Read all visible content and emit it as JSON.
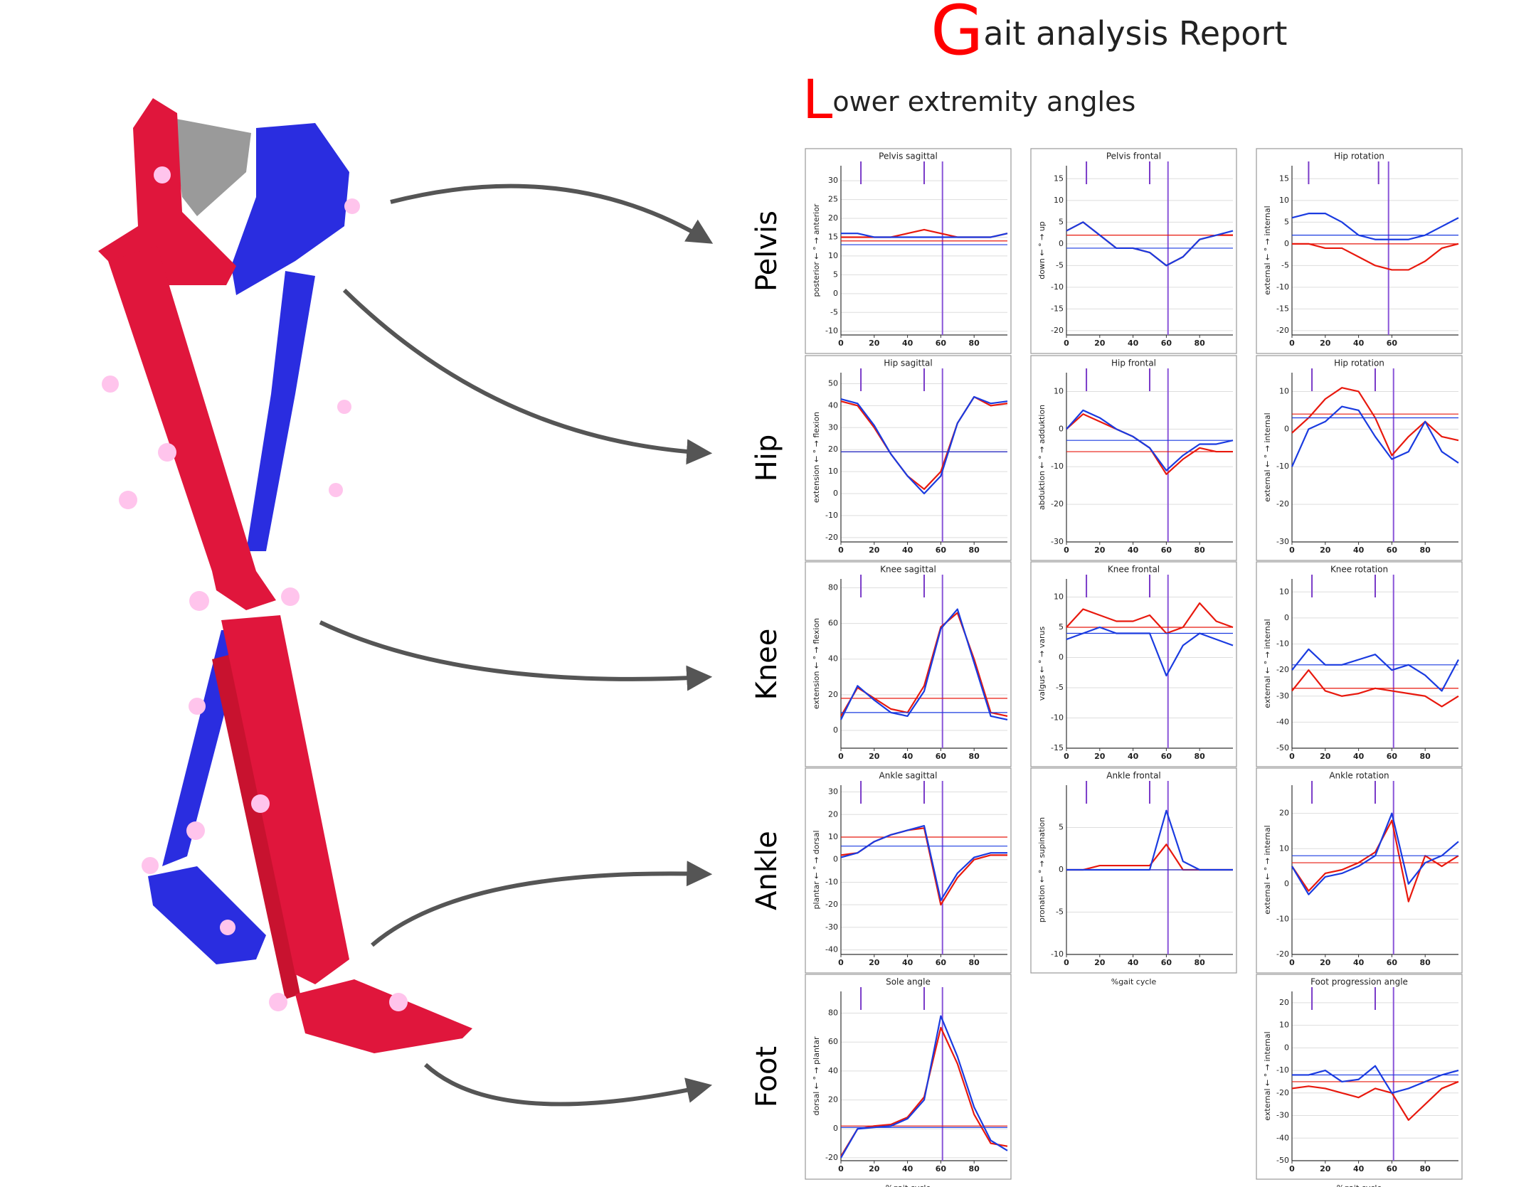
{
  "header": {
    "title_initial": "G",
    "title_rest": "ait analysis Report",
    "subtitle_initial": "L",
    "subtitle_rest": "ower extremity angles"
  },
  "row_labels": [
    "Pelvis",
    "Hip",
    "Knee",
    "Ankle",
    "Foot"
  ],
  "chart_data": [
    {
      "type": "line",
      "title": "Pelvis sagittal",
      "y_label": "posterior ← ° → anterior",
      "x": [
        0,
        10,
        20,
        30,
        40,
        50,
        60,
        70,
        80,
        90,
        100
      ],
      "xlim": [
        0,
        100
      ],
      "xticks": [
        0,
        20,
        40,
        60,
        80
      ],
      "ylim": [
        -11,
        34
      ],
      "yticks": [
        -10,
        -5,
        0,
        5,
        10,
        15,
        20,
        25,
        30
      ],
      "grid": true,
      "events": [
        12,
        50
      ],
      "toe_off": 61,
      "series": [
        {
          "color": "#e8190e",
          "values": [
            15,
            15,
            15,
            15,
            16,
            17,
            16,
            15,
            15,
            15,
            16
          ],
          "mean": 14
        },
        {
          "color": "#1a3be0",
          "values": [
            16,
            16,
            15,
            15,
            15,
            15,
            15,
            15,
            15,
            15,
            16
          ],
          "mean": 13
        }
      ]
    },
    {
      "type": "line",
      "title": "Pelvis frontal",
      "y_label": "down ← ° → up",
      "x": [
        0,
        10,
        20,
        30,
        40,
        50,
        60,
        70,
        80,
        90,
        100
      ],
      "xlim": [
        0,
        100
      ],
      "xticks": [
        0,
        20,
        40,
        60,
        80
      ],
      "ylim": [
        -21,
        18
      ],
      "yticks": [
        -20,
        -15,
        -10,
        -5,
        0,
        5,
        10,
        15
      ],
      "grid": true,
      "events": [
        12,
        50
      ],
      "toe_off": 61,
      "series": [
        {
          "color": "#e8190e",
          "values": [
            3,
            5,
            2,
            -1,
            -1,
            -2,
            -5,
            -3,
            1,
            2,
            2
          ],
          "mean": 2
        },
        {
          "color": "#1a3be0",
          "values": [
            3,
            5,
            2,
            -1,
            -1,
            -2,
            -5,
            -3,
            1,
            2,
            3
          ],
          "mean": -1
        }
      ]
    },
    {
      "type": "line",
      "title": "Hip rotation",
      "y_label": "external ← ° → internal",
      "x": [
        0,
        10,
        20,
        30,
        40,
        50,
        60,
        70,
        80,
        90,
        100
      ],
      "xlim": [
        0,
        100
      ],
      "xticks": [
        0,
        20,
        40,
        60
      ],
      "ylim": [
        -21,
        18
      ],
      "yticks": [
        -20,
        -15,
        -10,
        -5,
        0,
        5,
        10,
        15
      ],
      "grid": true,
      "events": [
        10,
        52
      ],
      "toe_off": 58,
      "series": [
        {
          "color": "#e8190e",
          "values": [
            0,
            0,
            -1,
            -1,
            -3,
            -5,
            -6,
            -6,
            -4,
            -1,
            0
          ],
          "mean": 0
        },
        {
          "color": "#1a3be0",
          "values": [
            6,
            7,
            7,
            5,
            2,
            1,
            1,
            1,
            2,
            4,
            6
          ],
          "mean": 2
        }
      ]
    },
    {
      "type": "line",
      "title": "Hip sagittal",
      "y_label": "extension ← ° → flexion",
      "x": [
        0,
        10,
        20,
        30,
        40,
        50,
        60,
        70,
        80,
        90,
        100
      ],
      "xlim": [
        0,
        100
      ],
      "xticks": [
        0,
        20,
        40,
        60,
        80
      ],
      "ylim": [
        -22,
        55
      ],
      "yticks": [
        -20,
        -10,
        0,
        10,
        20,
        30,
        40,
        50
      ],
      "grid": true,
      "events": [
        12,
        50
      ],
      "toe_off": 61,
      "series": [
        {
          "color": "#e8190e",
          "values": [
            42,
            40,
            30,
            18,
            8,
            2,
            10,
            32,
            44,
            40,
            41
          ],
          "mean": 19
        },
        {
          "color": "#1a3be0",
          "values": [
            43,
            41,
            31,
            18,
            8,
            0,
            8,
            32,
            44,
            41,
            42
          ],
          "mean": 19
        }
      ]
    },
    {
      "type": "line",
      "title": "Hip frontal",
      "y_label": "abduktion ← ° → adduktion",
      "x": [
        0,
        10,
        20,
        30,
        40,
        50,
        60,
        70,
        80,
        90,
        100
      ],
      "xlim": [
        0,
        100
      ],
      "xticks": [
        0,
        20,
        40,
        60,
        80
      ],
      "ylim": [
        -30,
        15
      ],
      "yticks": [
        -30,
        -20,
        -10,
        0,
        10
      ],
      "grid": true,
      "events": [
        12,
        50
      ],
      "toe_off": 61,
      "series": [
        {
          "color": "#e8190e",
          "values": [
            0,
            4,
            2,
            0,
            -2,
            -5,
            -12,
            -8,
            -5,
            -6,
            -6
          ],
          "mean": -6
        },
        {
          "color": "#1a3be0",
          "values": [
            0,
            5,
            3,
            0,
            -2,
            -5,
            -11,
            -7,
            -4,
            -4,
            -3
          ],
          "mean": -3
        }
      ]
    },
    {
      "type": "line",
      "title": "Hip rotation",
      "y_label": "external ← ° → internal",
      "x": [
        0,
        10,
        20,
        30,
        40,
        50,
        60,
        70,
        80,
        90,
        100
      ],
      "xlim": [
        0,
        100
      ],
      "xticks": [
        0,
        20,
        40,
        60,
        80
      ],
      "ylim": [
        -30,
        15
      ],
      "yticks": [
        -30,
        -20,
        -10,
        0,
        10
      ],
      "grid": true,
      "events": [
        12,
        50
      ],
      "toe_off": 61,
      "series": [
        {
          "color": "#e8190e",
          "values": [
            -1,
            3,
            8,
            11,
            10,
            3,
            -7,
            -2,
            2,
            -2,
            -3
          ],
          "mean": 4
        },
        {
          "color": "#1a3be0",
          "values": [
            -10,
            0,
            2,
            6,
            5,
            -2,
            -8,
            -6,
            2,
            -6,
            -9
          ],
          "mean": 3
        }
      ]
    },
    {
      "type": "line",
      "title": "Knee sagittal",
      "y_label": "extension ← ° → flexion",
      "x": [
        0,
        10,
        20,
        30,
        40,
        50,
        60,
        70,
        80,
        90,
        100
      ],
      "xlim": [
        0,
        100
      ],
      "xticks": [
        0,
        20,
        40,
        60,
        80
      ],
      "ylim": [
        -10,
        85
      ],
      "yticks": [
        0,
        20,
        40,
        60,
        80
      ],
      "grid": true,
      "events": [
        12,
        50
      ],
      "toe_off": 61,
      "series": [
        {
          "color": "#e8190e",
          "values": [
            8,
            24,
            18,
            12,
            10,
            25,
            58,
            66,
            40,
            10,
            8
          ],
          "mean": 18
        },
        {
          "color": "#1a3be0",
          "values": [
            6,
            25,
            17,
            10,
            8,
            22,
            57,
            68,
            38,
            8,
            6
          ],
          "mean": 10
        }
      ]
    },
    {
      "type": "line",
      "title": "Knee frontal",
      "y_label": "valgus ← ° → varus",
      "x": [
        0,
        10,
        20,
        30,
        40,
        50,
        60,
        70,
        80,
        90,
        100
      ],
      "xlim": [
        0,
        100
      ],
      "xticks": [
        0,
        20,
        40,
        60,
        80
      ],
      "ylim": [
        -15,
        13
      ],
      "yticks": [
        -15,
        -10,
        -5,
        0,
        5,
        10
      ],
      "grid": true,
      "events": [
        12,
        50
      ],
      "toe_off": 61,
      "series": [
        {
          "color": "#e8190e",
          "values": [
            5,
            8,
            7,
            6,
            6,
            7,
            4,
            5,
            9,
            6,
            5
          ],
          "mean": 5
        },
        {
          "color": "#1a3be0",
          "values": [
            3,
            4,
            5,
            4,
            4,
            4,
            -3,
            2,
            4,
            3,
            2
          ],
          "mean": 4
        }
      ]
    },
    {
      "type": "line",
      "title": "Knee rotation",
      "y_label": "external ← ° → internal",
      "x": [
        0,
        10,
        20,
        30,
        40,
        50,
        60,
        70,
        80,
        90,
        100
      ],
      "xlim": [
        0,
        100
      ],
      "xticks": [
        0,
        20,
        40,
        60,
        80
      ],
      "ylim": [
        -50,
        15
      ],
      "yticks": [
        -50,
        -40,
        -30,
        -20,
        -10,
        0,
        10
      ],
      "grid": true,
      "events": [
        12,
        50
      ],
      "toe_off": 61,
      "series": [
        {
          "color": "#e8190e",
          "values": [
            -28,
            -20,
            -28,
            -30,
            -29,
            -27,
            -28,
            -29,
            -30,
            -34,
            -30
          ],
          "mean": -27
        },
        {
          "color": "#1a3be0",
          "values": [
            -20,
            -12,
            -18,
            -18,
            -16,
            -14,
            -20,
            -18,
            -22,
            -28,
            -16
          ],
          "mean": -18
        }
      ]
    },
    {
      "type": "line",
      "title": "Ankle sagittal",
      "y_label": "plantar ← ° → dorsal",
      "x": [
        0,
        10,
        20,
        30,
        40,
        50,
        60,
        70,
        80,
        90,
        100
      ],
      "xlim": [
        0,
        100
      ],
      "xticks": [
        0,
        20,
        40,
        60,
        80
      ],
      "ylim": [
        -42,
        33
      ],
      "yticks": [
        -40,
        -30,
        -20,
        -10,
        0,
        10,
        20,
        30
      ],
      "grid": true,
      "events": [
        12,
        50
      ],
      "toe_off": 61,
      "series": [
        {
          "color": "#e8190e",
          "values": [
            2,
            3,
            8,
            11,
            13,
            14,
            -20,
            -8,
            0,
            2,
            2
          ],
          "mean": 10
        },
        {
          "color": "#1a3be0",
          "values": [
            1,
            3,
            8,
            11,
            13,
            15,
            -18,
            -6,
            1,
            3,
            3
          ],
          "mean": 6
        }
      ]
    },
    {
      "type": "line",
      "title": "Ankle frontal",
      "y_label": "pronation ← ° → supination",
      "x_label": "%gait cycle",
      "x": [
        0,
        10,
        20,
        30,
        40,
        50,
        60,
        70,
        80,
        90,
        100
      ],
      "xlim": [
        0,
        100
      ],
      "xticks": [
        0,
        20,
        40,
        60,
        80
      ],
      "ylim": [
        -10,
        10
      ],
      "yticks": [
        -10,
        -5,
        0,
        5
      ],
      "grid": true,
      "events": [
        12,
        50
      ],
      "toe_off": 61,
      "series": [
        {
          "color": "#e8190e",
          "values": [
            0,
            0,
            0.5,
            0.5,
            0.5,
            0.5,
            3,
            0,
            0,
            0,
            0
          ],
          "mean": 0
        },
        {
          "color": "#1a3be0",
          "values": [
            0,
            0,
            0,
            0,
            0,
            0,
            7,
            1,
            0,
            0,
            0
          ],
          "mean": 0
        }
      ]
    },
    {
      "type": "line",
      "title": "Ankle rotation",
      "y_label": "external ← ° → internal",
      "x": [
        0,
        10,
        20,
        30,
        40,
        50,
        60,
        70,
        80,
        90,
        100
      ],
      "xlim": [
        0,
        100
      ],
      "xticks": [
        0,
        20,
        40,
        60,
        80
      ],
      "ylim": [
        -20,
        28
      ],
      "yticks": [
        -20,
        -10,
        0,
        10,
        20
      ],
      "grid": true,
      "events": [
        12,
        50
      ],
      "toe_off": 61,
      "series": [
        {
          "color": "#e8190e",
          "values": [
            5,
            -2,
            3,
            4,
            6,
            9,
            18,
            -5,
            8,
            5,
            8
          ],
          "mean": 6
        },
        {
          "color": "#1a3be0",
          "values": [
            5,
            -3,
            2,
            3,
            5,
            8,
            20,
            0,
            6,
            8,
            12
          ],
          "mean": 8
        }
      ]
    },
    {
      "type": "line",
      "title": "Sole angle",
      "y_label": "dorsal ← ° → plantar",
      "x_label": "%gait cycle",
      "x": [
        0,
        10,
        20,
        30,
        40,
        50,
        60,
        70,
        80,
        90,
        100
      ],
      "xlim": [
        0,
        100
      ],
      "xticks": [
        0,
        20,
        40,
        60,
        80
      ],
      "ylim": [
        -22,
        95
      ],
      "yticks": [
        -20,
        0,
        20,
        40,
        60,
        80
      ],
      "grid": true,
      "events": [
        12,
        50
      ],
      "toe_off": 61,
      "series": [
        {
          "color": "#e8190e",
          "values": [
            -19,
            0,
            2,
            3,
            8,
            22,
            70,
            45,
            10,
            -10,
            -12
          ],
          "mean": 2
        },
        {
          "color": "#1a3be0",
          "values": [
            -20,
            0,
            1,
            2,
            7,
            20,
            78,
            50,
            15,
            -8,
            -15
          ],
          "mean": 1
        }
      ]
    },
    {
      "type": "line",
      "title": "Foot progression angle",
      "y_label": "external ← ° → internal",
      "x_label": "%gait cycle",
      "x": [
        0,
        10,
        20,
        30,
        40,
        50,
        60,
        70,
        80,
        90,
        100
      ],
      "xlim": [
        0,
        100
      ],
      "xticks": [
        0,
        20,
        40,
        60,
        80
      ],
      "ylim": [
        -50,
        25
      ],
      "yticks": [
        -50,
        -40,
        -30,
        -20,
        -10,
        0,
        10,
        20
      ],
      "grid": true,
      "events": [
        12,
        50
      ],
      "toe_off": 61,
      "series": [
        {
          "color": "#e8190e",
          "values": [
            -18,
            -17,
            -18,
            -20,
            -22,
            -18,
            -20,
            -32,
            -25,
            -18,
            -15
          ],
          "mean": -15
        },
        {
          "color": "#1a3be0",
          "values": [
            -12,
            -12,
            -10,
            -15,
            -14,
            -8,
            -20,
            -18,
            -15,
            -12,
            -10
          ],
          "mean": -12
        }
      ]
    }
  ]
}
